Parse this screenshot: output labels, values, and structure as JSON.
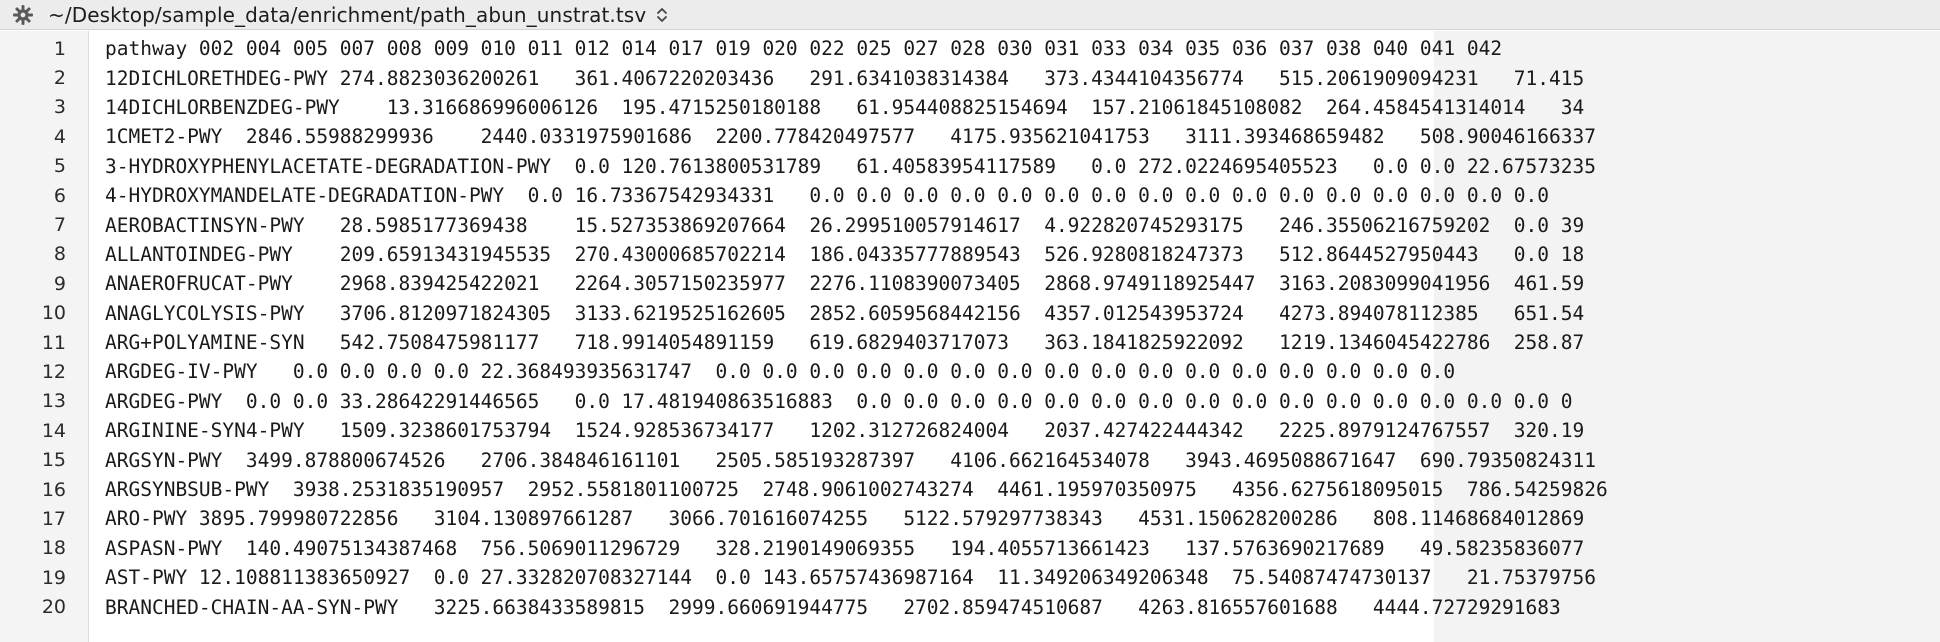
{
  "pathbar": {
    "path": "~/Desktop/sample_data/enrichment/path_abun_unstrat.tsv",
    "icon": "gear-icon",
    "chooser_icon": "chevron-updown-icon"
  },
  "editor": {
    "lines": [
      {
        "number": "1",
        "text": "pathway 002 004 005 007 008 009 010 011 012 014 017 019 020 022 025 027 028 030 031 033 034 035 036 037 038 040 041 042"
      },
      {
        "number": "2",
        "text": "12DICHLORETHDEG-PWY 274.8823036200261   361.4067220203436   291.6341038314384   373.4344104356774   515.2061909094231   71.415"
      },
      {
        "number": "3",
        "text": "14DICHLORBENZDEG-PWY    13.316686996006126  195.4715250180188   61.954408825154694  157.21061845108082  264.4584541314014   34"
      },
      {
        "number": "4",
        "text": "1CMET2-PWY  2846.55988299936    2440.0331975901686  2200.778420497577   4175.935621041753   3111.393468659482   508.90046166337"
      },
      {
        "number": "5",
        "text": "3-HYDROXYPHENYLACETATE-DEGRADATION-PWY  0.0 120.7613800531789   61.40583954117589   0.0 272.0224695405523   0.0 0.0 22.67573235"
      },
      {
        "number": "6",
        "text": "4-HYDROXYMANDELATE-DEGRADATION-PWY  0.0 16.73367542934331   0.0 0.0 0.0 0.0 0.0 0.0 0.0 0.0 0.0 0.0 0.0 0.0 0.0 0.0 0.0 0.0"
      },
      {
        "number": "7",
        "text": "AEROBACTINSYN-PWY   28.5985177369438    15.527353869207664  26.299510057914617  4.922820745293175   246.35506216759202  0.0 39"
      },
      {
        "number": "8",
        "text": "ALLANTOINDEG-PWY    209.65913431945535  270.43000685702214  186.04335777889543  526.9280818247373   512.8644527950443   0.0 18"
      },
      {
        "number": "9",
        "text": "ANAEROFRUCAT-PWY    2968.839425422021   2264.3057150235977  2276.1108390073405  2868.9749118925447  3163.2083099041956  461.59"
      },
      {
        "number": "10",
        "text": "ANAGLYCOLYSIS-PWY   3706.8120971824305  3133.6219525162605  2852.6059568442156  4357.012543953724   4273.894078112385   651.54"
      },
      {
        "number": "11",
        "text": "ARG+POLYAMINE-SYN   542.7508475981177   718.9914054891159   619.6829403717073   363.1841825922092   1219.1346045422786  258.87"
      },
      {
        "number": "12",
        "text": "ARGDEG-IV-PWY   0.0 0.0 0.0 0.0 22.368493935631747  0.0 0.0 0.0 0.0 0.0 0.0 0.0 0.0 0.0 0.0 0.0 0.0 0.0 0.0 0.0 0.0"
      },
      {
        "number": "13",
        "text": "ARGDEG-PWY  0.0 0.0 33.28642291446565   0.0 17.481940863516883  0.0 0.0 0.0 0.0 0.0 0.0 0.0 0.0 0.0 0.0 0.0 0.0 0.0 0.0 0.0 0"
      },
      {
        "number": "14",
        "text": "ARGININE-SYN4-PWY   1509.3238601753794  1524.928536734177   1202.312726824004   2037.427422444342   2225.8979124767557  320.19"
      },
      {
        "number": "15",
        "text": "ARGSYN-PWY  3499.878800674526   2706.384846161101   2505.585193287397   4106.662164534078   3943.4695088671647  690.79350824311"
      },
      {
        "number": "16",
        "text": "ARGSYNBSUB-PWY  3938.2531835190957  2952.5581801100725  2748.9061002743274  4461.195970350975   4356.6275618095015  786.54259826"
      },
      {
        "number": "17",
        "text": "ARO-PWY 3895.799980722856   3104.130897661287   3066.701616074255   5122.579297738343   4531.150628200286   808.11468684012869"
      },
      {
        "number": "18",
        "text": "ASPASN-PWY  140.49075134387468  756.5069011296729   328.2190149069355   194.4055713661423   137.5763690217689   49.58235836077"
      },
      {
        "number": "19",
        "text": "AST-PWY 12.108811383650927  0.0 27.332820708327144  0.0 143.65757436987164  11.349206349206348  75.54087474730137   21.75379756"
      },
      {
        "number": "20",
        "text": "BRANCHED-CHAIN-AA-SYN-PWY   3225.6638433589815  2999.660691944775   2702.859474510687   4263.816557601688   4444.72729291683"
      }
    ]
  }
}
